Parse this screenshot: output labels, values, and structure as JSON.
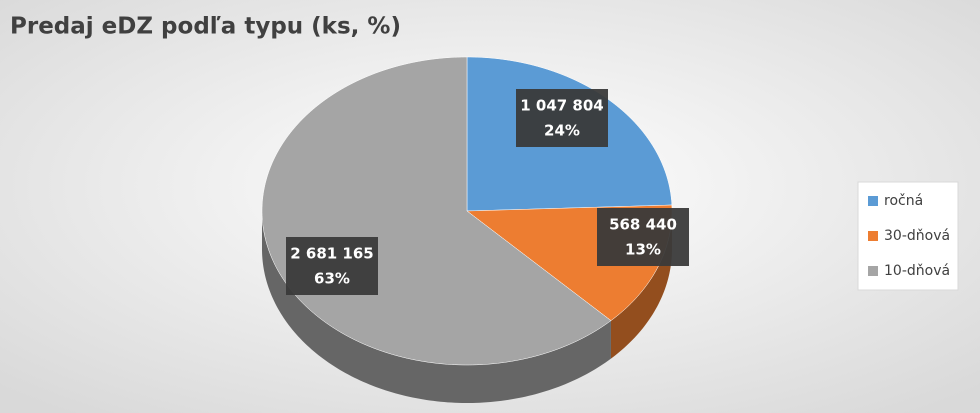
{
  "chart_data": {
    "type": "pie",
    "title": "Predaj eDZ podľa typu (ks, %)",
    "categories": [
      "ročná",
      "30-dňová",
      "10-dňová"
    ],
    "values": [
      1047804,
      568440,
      2681165
    ],
    "value_labels": [
      "1 047 804",
      "568 440",
      "2 681 165"
    ],
    "percents": [
      24,
      13,
      63
    ],
    "percent_labels": [
      "24%",
      "13%",
      "63%"
    ],
    "colors": [
      "#5b9bd5",
      "#ed7d31",
      "#a5a5a5"
    ],
    "legend": "right"
  }
}
